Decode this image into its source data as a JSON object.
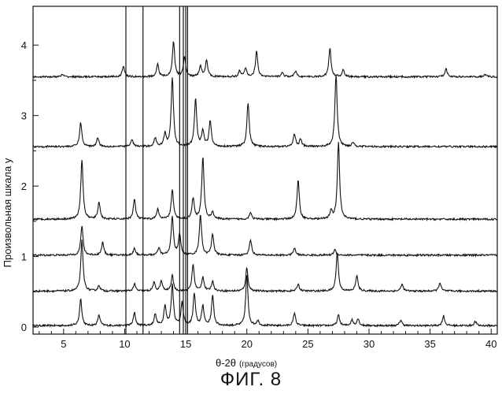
{
  "chart_data": {
    "type": "line",
    "xlabel": "θ-2θ",
    "xlabel_unit": "(градусов)",
    "ylabel": "Произвольная шкала  y",
    "xlim": [
      2.5,
      40.5
    ],
    "ylim": [
      -0.1,
      4.55
    ],
    "x_ticks": [
      5,
      10,
      15,
      20,
      25,
      30,
      35,
      40
    ],
    "y_ticks": [
      0,
      1,
      2,
      3,
      4
    ],
    "grid": false,
    "reference_lines_x": [
      10.1,
      11.5,
      14.5,
      14.8,
      15.0,
      15.15
    ],
    "series": [
      {
        "baseline": 0.02,
        "peaks": [
          [
            6.4,
            0.38
          ],
          [
            7.9,
            0.15
          ],
          [
            10.8,
            0.18
          ],
          [
            12.5,
            0.16
          ],
          [
            13.3,
            0.28
          ],
          [
            13.9,
            0.58
          ],
          [
            14.7,
            0.32
          ],
          [
            15.7,
            0.45
          ],
          [
            16.4,
            0.28
          ],
          [
            17.2,
            0.42
          ],
          [
            20.0,
            0.72
          ],
          [
            20.9,
            0.07
          ],
          [
            23.9,
            0.18
          ],
          [
            27.5,
            0.15
          ],
          [
            28.6,
            0.08
          ],
          [
            29.1,
            0.1
          ],
          [
            32.6,
            0.08
          ],
          [
            36.1,
            0.14
          ],
          [
            38.7,
            0.06
          ]
        ]
      },
      {
        "baseline": 0.51,
        "peaks": [
          [
            6.5,
            0.72
          ],
          [
            7.9,
            0.08
          ],
          [
            10.8,
            0.1
          ],
          [
            12.4,
            0.12
          ],
          [
            13.0,
            0.14
          ],
          [
            13.9,
            0.22
          ],
          [
            15.6,
            0.38
          ],
          [
            16.4,
            0.2
          ],
          [
            17.2,
            0.14
          ],
          [
            20.0,
            0.33
          ],
          [
            24.2,
            0.1
          ],
          [
            27.4,
            0.55
          ],
          [
            29.0,
            0.22
          ],
          [
            32.7,
            0.1
          ],
          [
            35.8,
            0.12
          ]
        ]
      },
      {
        "baseline": 1.02,
        "peaks": [
          [
            6.5,
            0.42
          ],
          [
            8.2,
            0.18
          ],
          [
            10.8,
            0.1
          ],
          [
            12.8,
            0.1
          ],
          [
            13.9,
            0.55
          ],
          [
            14.5,
            0.3
          ],
          [
            16.2,
            0.58
          ],
          [
            17.2,
            0.3
          ],
          [
            20.3,
            0.22
          ],
          [
            23.9,
            0.1
          ],
          [
            27.2,
            0.08
          ]
        ]
      },
      {
        "baseline": 1.53,
        "peaks": [
          [
            6.5,
            0.85
          ],
          [
            7.9,
            0.24
          ],
          [
            10.8,
            0.28
          ],
          [
            12.7,
            0.14
          ],
          [
            13.9,
            0.42
          ],
          [
            15.6,
            0.3
          ],
          [
            16.4,
            0.88
          ],
          [
            17.2,
            0.1
          ],
          [
            20.3,
            0.1
          ],
          [
            24.2,
            0.55
          ],
          [
            26.9,
            0.12
          ],
          [
            27.5,
            1.08
          ]
        ]
      },
      {
        "baseline": 2.56,
        "peaks": [
          [
            6.4,
            0.34
          ],
          [
            7.8,
            0.13
          ],
          [
            10.6,
            0.1
          ],
          [
            12.5,
            0.12
          ],
          [
            13.3,
            0.18
          ],
          [
            13.9,
            0.98
          ],
          [
            15.8,
            0.68
          ],
          [
            16.4,
            0.22
          ],
          [
            17.0,
            0.36
          ],
          [
            20.1,
            0.62
          ],
          [
            23.9,
            0.18
          ],
          [
            24.4,
            0.1
          ],
          [
            27.3,
            1.02
          ],
          [
            28.7,
            0.06
          ]
        ]
      },
      {
        "baseline": 3.55,
        "peaks": [
          [
            4.9,
            0.03
          ],
          [
            9.9,
            0.15
          ],
          [
            12.7,
            0.18
          ],
          [
            14.0,
            0.5
          ],
          [
            14.9,
            0.28
          ],
          [
            16.2,
            0.16
          ],
          [
            16.7,
            0.24
          ],
          [
            19.4,
            0.08
          ],
          [
            19.9,
            0.12
          ],
          [
            20.8,
            0.36
          ],
          [
            22.9,
            0.06
          ],
          [
            24.0,
            0.08
          ],
          [
            26.8,
            0.4
          ],
          [
            27.9,
            0.1
          ],
          [
            36.3,
            0.12
          ],
          [
            39.5,
            0.04
          ]
        ]
      }
    ]
  },
  "caption": "ФИГ. 8"
}
